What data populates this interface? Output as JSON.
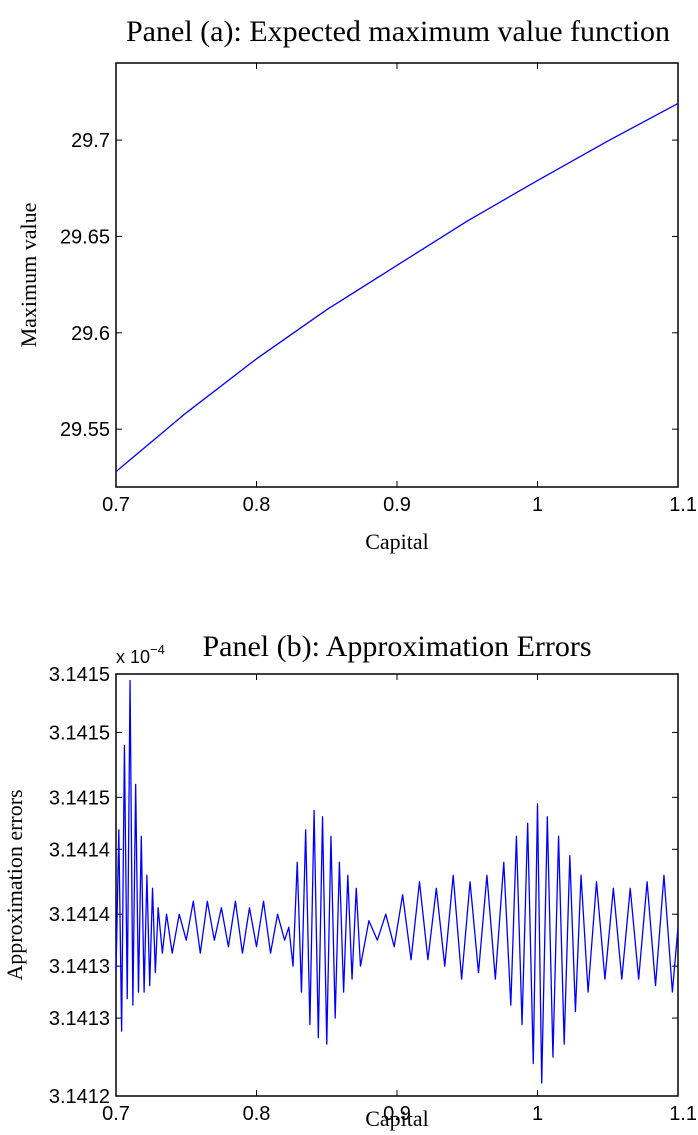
{
  "chart_data": [
    {
      "type": "line",
      "title": "Panel (a): Expected maximum value function",
      "xlabel": "Capital",
      "ylabel": "Maximum value",
      "xlim": [
        0.7,
        1.1
      ],
      "ylim": [
        29.52,
        29.74
      ],
      "x_ticks": [
        0.7,
        0.8,
        0.9,
        1.0,
        1.1
      ],
      "x_tick_labels": [
        "0.7",
        "0.8",
        "0.9",
        "1",
        "1.1"
      ],
      "y_ticks": [
        29.55,
        29.6,
        29.65,
        29.7
      ],
      "y_tick_labels": [
        "29.55",
        "29.6",
        "29.65",
        "29.7"
      ],
      "grid": false,
      "color": "#0000ff",
      "series": [
        {
          "x": [
            0.7,
            0.75,
            0.8,
            0.85,
            0.9,
            0.95,
            1.0,
            1.05,
            1.1
          ],
          "y": [
            29.528,
            29.5585,
            29.5865,
            29.612,
            29.635,
            29.658,
            29.679,
            29.6995,
            29.719
          ]
        }
      ]
    },
    {
      "type": "line",
      "title": "Panel (b): Approximation Errors",
      "multiplier": "x 10",
      "multiplier_exp": "−4",
      "xlabel": "Capital",
      "ylabel": "Approximation errors",
      "xlim": [
        0.7,
        1.1
      ],
      "ylim": [
        3.14124,
        3.141565
      ],
      "x_ticks": [
        0.7,
        0.8,
        0.9,
        1.0,
        1.1
      ],
      "x_tick_labels": [
        "0.7",
        "0.8",
        "0.9",
        "1",
        "1.1"
      ],
      "y_ticks": [
        3.14124,
        3.1413,
        3.14134,
        3.14138,
        3.14143,
        3.14147,
        3.14152,
        3.141565
      ],
      "y_tick_labels": [
        "3.1412",
        "3.1413",
        "3.1413",
        "3.1414",
        "3.1414",
        "3.1415",
        "3.1415",
        "3.1415"
      ],
      "grid": false,
      "color": "#0000ff",
      "series": [
        {
          "x": [
            0.7,
            0.702,
            0.704,
            0.706,
            0.708,
            0.71,
            0.712,
            0.714,
            0.716,
            0.718,
            0.72,
            0.722,
            0.724,
            0.726,
            0.728,
            0.73,
            0.733,
            0.736,
            0.74,
            0.745,
            0.75,
            0.755,
            0.76,
            0.765,
            0.77,
            0.775,
            0.78,
            0.785,
            0.79,
            0.795,
            0.8,
            0.805,
            0.81,
            0.815,
            0.82,
            0.823,
            0.826,
            0.829,
            0.832,
            0.835,
            0.838,
            0.841,
            0.844,
            0.847,
            0.85,
            0.853,
            0.856,
            0.859,
            0.862,
            0.865,
            0.868,
            0.871,
            0.874,
            0.88,
            0.886,
            0.892,
            0.898,
            0.904,
            0.91,
            0.916,
            0.922,
            0.928,
            0.934,
            0.94,
            0.946,
            0.952,
            0.958,
            0.964,
            0.97,
            0.976,
            0.981,
            0.985,
            0.989,
            0.993,
            0.997,
            1.0,
            1.003,
            1.007,
            1.011,
            1.015,
            1.019,
            1.023,
            1.027,
            1.031,
            1.036,
            1.042,
            1.048,
            1.054,
            1.06,
            1.066,
            1.072,
            1.078,
            1.084,
            1.09,
            1.096,
            1.1
          ],
          "y": [
            3.141335,
            3.141445,
            3.14129,
            3.14151,
            3.141315,
            3.14156,
            3.14131,
            3.14148,
            3.14132,
            3.14144,
            3.14132,
            3.14141,
            3.141325,
            3.1414,
            3.141335,
            3.141385,
            3.14135,
            3.14138,
            3.14135,
            3.14138,
            3.14136,
            3.14139,
            3.14135,
            3.14139,
            3.14136,
            3.141385,
            3.141355,
            3.14139,
            3.14135,
            3.141385,
            3.141355,
            3.14139,
            3.14135,
            3.14138,
            3.14136,
            3.14137,
            3.14134,
            3.14142,
            3.14132,
            3.141445,
            3.141295,
            3.14146,
            3.141285,
            3.141455,
            3.14128,
            3.14144,
            3.1413,
            3.14142,
            3.14132,
            3.14141,
            3.14133,
            3.1414,
            3.14134,
            3.141375,
            3.14136,
            3.14138,
            3.141355,
            3.141395,
            3.141345,
            3.141405,
            3.141345,
            3.1414,
            3.14134,
            3.14141,
            3.14133,
            3.141405,
            3.141335,
            3.14141,
            3.14133,
            3.14142,
            3.14131,
            3.14144,
            3.141295,
            3.14145,
            3.141265,
            3.141465,
            3.14125,
            3.141455,
            3.14127,
            3.14144,
            3.14128,
            3.141425,
            3.141305,
            3.14141,
            3.14132,
            3.141405,
            3.14133,
            3.1414,
            3.14133,
            3.1414,
            3.14133,
            3.141405,
            3.141325,
            3.14141,
            3.14132,
            3.14137
          ]
        }
      ]
    }
  ]
}
